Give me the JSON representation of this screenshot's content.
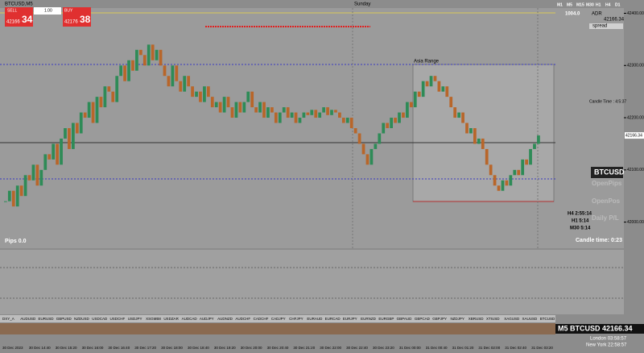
{
  "header": {
    "symbol": "BTCUSD,M5",
    "day": "Sunday"
  },
  "trade_panel": {
    "sell": "SELL",
    "buy": "BUY",
    "lot": "1.00",
    "sell_price": "42166",
    "sell_pips": "34",
    "buy_price": "42176",
    "buy_pips": "38"
  },
  "timeframes": [
    "M1",
    "M5",
    "M15",
    "M30",
    "H1",
    "H4",
    "D1"
  ],
  "info": {
    "range": "1004.0",
    "adr": "ADR",
    "adr_value": "42166.34",
    "spread": "spread",
    "candle_time_small": "Candle Time : 4:5:37"
  },
  "chart_data": {
    "type": "candlestick",
    "closes": [
      42040,
      42060,
      42030,
      42070,
      42050,
      42090,
      42080,
      42110,
      42070,
      42100,
      42130,
      42120,
      42150,
      42110,
      42160,
      42180,
      42140,
      42190,
      42170,
      42210,
      42200,
      42230,
      42190,
      42240,
      42220,
      42260,
      42250,
      42230,
      42280,
      42300,
      42270,
      42310,
      42290,
      42330,
      42320,
      42300,
      42340,
      42310,
      42330,
      42300,
      42280,
      42260,
      42300,
      42270,
      42250,
      42280,
      42260,
      42240,
      42250,
      42230,
      42260,
      42240,
      42220,
      42230,
      42210,
      42240,
      42220,
      42200,
      42230,
      42210,
      42230,
      42250,
      42220,
      42210,
      42230,
      42200,
      42220,
      42210,
      42190,
      42210,
      42220,
      42200,
      42210,
      42190,
      42200,
      42210,
      42205,
      42215,
      42200,
      42210,
      42220,
      42205,
      42215,
      42210,
      42200,
      42190,
      42200,
      42180,
      42170,
      42150,
      42130,
      42110,
      42140,
      42150,
      42170,
      42190,
      42180,
      42200,
      42190,
      42210,
      42200,
      42230,
      42220,
      42250,
      42240,
      42270,
      42260,
      42280,
      42270,
      42250,
      42260,
      42240,
      42220,
      42200,
      42210,
      42190,
      42170,
      42180,
      42150,
      42160,
      42140,
      42110,
      42090,
      42070,
      42060,
      42080,
      42070,
      42090,
      42100,
      42090,
      42120,
      42110,
      42140,
      42150,
      42166
    ],
    "up_color": "#2e8b57",
    "down_color": "#b8662a",
    "ylim": [
      41950,
      42410
    ],
    "yticks": [
      {
        "value": 42000,
        "label": "42000.00"
      },
      {
        "value": 42100,
        "label": "42100.00"
      },
      {
        "value": 42200,
        "label": "42200.00"
      },
      {
        "value": 42300,
        "label": "42300.00"
      },
      {
        "value": 42400,
        "label": "42400.00"
      }
    ],
    "last_label": "42166.34",
    "annotation": "Asia Range",
    "pips": "Pips 0.0"
  },
  "panel": {
    "symbol": "BTCUSD",
    "open_pips": "OpenPips",
    "open_pos": "OpenPos",
    "daily_pl": "Daily P/L",
    "h4": "H4 2:55:14",
    "h1": "H1 5:14",
    "m30": "M30 5:14",
    "candle_time": "Candle time: 0:23"
  },
  "footer": {
    "title": "M5 BTCUSD 42166.34",
    "london": "London 03:58:57",
    "new_york": "New York 22:58:57",
    "pairs": [
      "DXY_A",
      "AUDUSD",
      "EURUSD",
      "GBPUSD",
      "NZDUSD",
      "USDCAD",
      "USDCHF",
      "USDJPY",
      "XSGMB8",
      "USDZAR",
      "AUDCAD",
      "AUDJPY",
      "AUDNZD",
      "AUDCHF",
      "CADCHF",
      "CADJPY",
      "CHFJPY",
      "EURAUD",
      "EURCAD",
      "EURJPY",
      "EURNZD",
      "EURGBP",
      "GBPAUD",
      "GBPCAD",
      "GBPJPY",
      "NZDJPY",
      "XBRUSD",
      "XTIUSD",
      "XAGUSD",
      "XAUUSD",
      "BTCUSD"
    ],
    "dates": [
      "30 Dec 2023",
      "30 Dec 14:40",
      "30 Dec 15:20",
      "30 Dec 16:00",
      "30 Dec 16:40",
      "30 Dec 17:20",
      "30 Dec 18:00",
      "30 Dec 18:40",
      "30 Dec 19:20",
      "30 Dec 20:00",
      "30 Dec 20:40",
      "30 Dec 21:20",
      "30 Dec 22:00",
      "30 Dec 22:40",
      "30 Dec 23:20",
      "31 Dec 00:00",
      "31 Dec 00:40",
      "31 Dec 01:20",
      "31 Dec 02:00",
      "31 Dec 02:40",
      "31 Dec 03:20"
    ]
  }
}
